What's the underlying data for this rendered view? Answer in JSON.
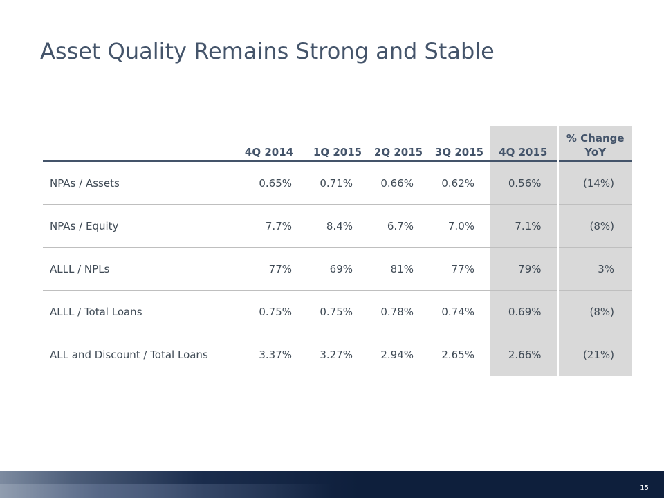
{
  "slide": {
    "title": "Asset Quality Remains Strong and Stable",
    "page_number": "15"
  },
  "table": {
    "headers": [
      "",
      "4Q 2014",
      "1Q 2015",
      "2Q 2015",
      "3Q 2015",
      "4Q 2015",
      "% Change YoY"
    ],
    "rows": [
      {
        "label": "NPAs / Assets",
        "values": [
          "0.65%",
          "0.71%",
          "0.66%",
          "0.62%",
          "0.56%",
          "(14%)"
        ]
      },
      {
        "label": "NPAs / Equity",
        "values": [
          "7.7%",
          "8.4%",
          "6.7%",
          "7.0%",
          "7.1%",
          "(8%)"
        ]
      },
      {
        "label": "ALLL / NPLs",
        "values": [
          "77%",
          "69%",
          "81%",
          "77%",
          "79%",
          "3%"
        ]
      },
      {
        "label": "ALLL / Total Loans",
        "values": [
          "0.75%",
          "0.75%",
          "0.78%",
          "0.74%",
          "0.69%",
          "(8%)"
        ]
      },
      {
        "label": "ALL and Discount / Total Loans",
        "values": [
          "3.37%",
          "3.27%",
          "2.94%",
          "2.65%",
          "2.66%",
          "(21%)"
        ]
      }
    ]
  },
  "colors": {
    "title": "#44546a",
    "text": "#3f4a55",
    "highlight_bg": "#d9d9d9",
    "footer_bg": "#0e1f3c"
  }
}
